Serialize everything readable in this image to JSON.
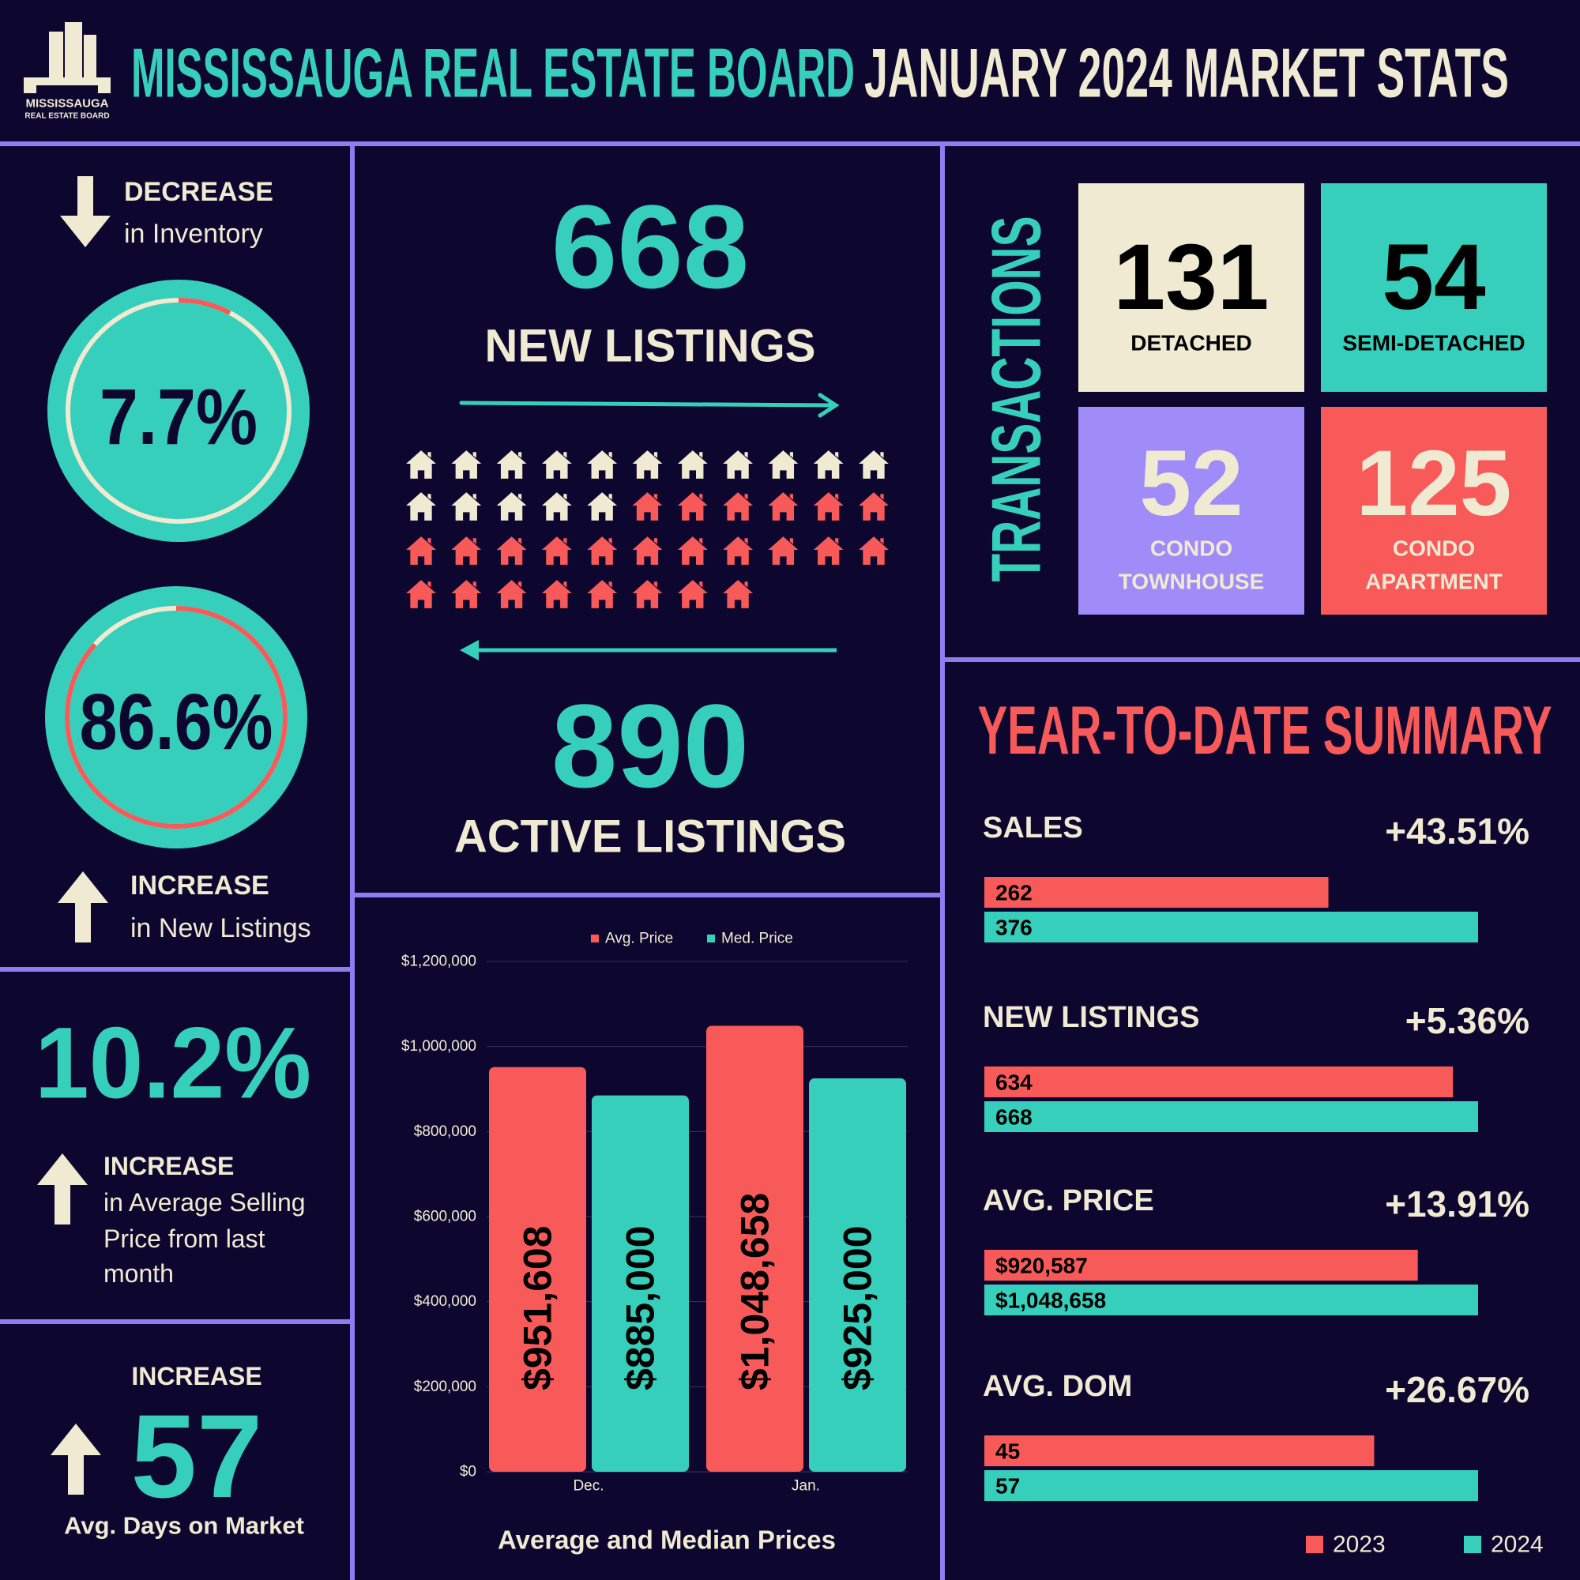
{
  "header": {
    "logo_name": "MISSISSAUGA",
    "logo_sub": "REAL ESTATE BOARD",
    "board": "MISSISSAUGA REAL ESTATE BOARD",
    "period": "JANUARY 2024 MARKET STATS"
  },
  "inventory": {
    "direction": "DECREASE",
    "caption": "in Inventory",
    "value": 7.7,
    "label": "7.7%"
  },
  "new_listings_change": {
    "value": 86.6,
    "label": "86.6%",
    "direction": "INCREASE",
    "caption": "in New Listings"
  },
  "avg_price_change": {
    "label": "10.2%",
    "direction": "INCREASE",
    "caption": [
      "in Average Selling",
      "Price from last",
      "month"
    ]
  },
  "days_on_market": {
    "direction": "INCREASE",
    "value": 57,
    "caption": "Avg. Days on Market"
  },
  "listings": {
    "new": {
      "value": 668,
      "label": "NEW LISTINGS"
    },
    "active": {
      "value": 890,
      "label": "ACTIVE LISTINGS"
    }
  },
  "transactions": {
    "title": "TRANSACTIONS",
    "items": [
      {
        "value": 131,
        "label": [
          "DETACHED"
        ]
      },
      {
        "value": 54,
        "label": [
          "SEMI-DETACHED"
        ]
      },
      {
        "value": 52,
        "label": [
          "CONDO",
          "TOWNHOUSE"
        ]
      },
      {
        "value": 125,
        "label": [
          "CONDO",
          "APARTMENT"
        ]
      }
    ]
  },
  "chart_data": [
    {
      "type": "bar",
      "title": "Average and Median Prices",
      "categories": [
        "Dec.",
        "Jan."
      ],
      "series": [
        {
          "name": "Avg. Price",
          "color": "#f85a5a",
          "values": [
            951608,
            1048658
          ],
          "value_labels": [
            "$951,608",
            "$1,048,658"
          ]
        },
        {
          "name": "Med. Price",
          "color": "#36cfbb",
          "values": [
            885000,
            925000
          ],
          "value_labels": [
            "$885,000",
            "$925,000"
          ]
        }
      ],
      "ylim": [
        0,
        1200000
      ],
      "yticks": [
        {
          "value": 0,
          "label": "$0"
        },
        {
          "value": 200000,
          "label": "$200,000"
        },
        {
          "value": 400000,
          "label": "$400,000"
        },
        {
          "value": 600000,
          "label": "$600,000"
        },
        {
          "value": 800000,
          "label": "$800,000"
        },
        {
          "value": 1000000,
          "label": "$1,000,000"
        },
        {
          "value": 1200000,
          "label": "$1,200,000"
        }
      ],
      "grid": true
    },
    {
      "type": "hbar",
      "title": "YEAR-TO-DATE SUMMARY",
      "categories": [
        "SALES",
        "NEW LISTINGS",
        "AVG. PRICE",
        "AVG. DOM"
      ],
      "changes": [
        "+43.51%",
        "+5.36%",
        "+13.91%",
        "+26.67%"
      ],
      "series": [
        {
          "name": "2023",
          "color": "#f85a5a",
          "values": [
            262,
            634,
            920587,
            45
          ],
          "value_labels": [
            "262",
            "634",
            "$920,587",
            "45"
          ]
        },
        {
          "name": "2024",
          "color": "#36cfbb",
          "values": [
            376,
            668,
            1048658,
            57
          ],
          "value_labels": [
            "376",
            "668",
            "$1,048,658",
            "57"
          ]
        }
      ]
    }
  ]
}
